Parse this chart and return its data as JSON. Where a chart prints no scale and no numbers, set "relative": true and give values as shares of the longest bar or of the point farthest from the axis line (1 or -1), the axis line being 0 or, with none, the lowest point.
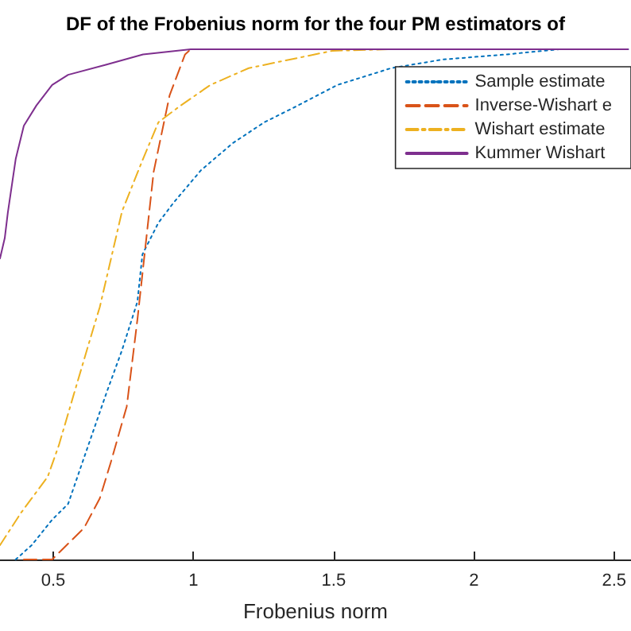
{
  "chart_data": {
    "type": "line",
    "relative": true,
    "title": "DF of the Frobenius norm for the four PM estimators of",
    "xlabel": "Frobenius norm",
    "xlim": [
      0.31,
      2.56
    ],
    "xticks": [
      0.5,
      1,
      1.5,
      2,
      2.5
    ],
    "legend": "top right",
    "grid": false,
    "marker": "none",
    "series": [
      {
        "name": "Sample estimate",
        "color": "#0072bd",
        "line_style": "dotted",
        "x": [
          0.366,
          0.423,
          0.496,
          0.553,
          0.61,
          0.69,
          0.745,
          0.8,
          0.818,
          0.875,
          0.93,
          1.027,
          1.14,
          1.253,
          1.366,
          1.513,
          1.705,
          1.89,
          2.118,
          2.304,
          2.55
        ],
        "values": [
          0,
          0.028,
          0.078,
          0.109,
          0.2,
          0.327,
          0.41,
          0.505,
          0.598,
          0.66,
          0.7,
          0.763,
          0.816,
          0.857,
          0.888,
          0.93,
          0.963,
          0.98,
          0.99,
          1,
          1
        ]
      },
      {
        "name": "Inverse-Wishart e",
        "color": "#d95319",
        "line_style": "dashed",
        "x": [
          0.395,
          0.496,
          0.61,
          0.666,
          0.705,
          0.762,
          0.8,
          0.858,
          0.915,
          0.97,
          0.99,
          2.55
        ],
        "values": [
          0,
          0,
          0.062,
          0.12,
          0.19,
          0.3,
          0.47,
          0.76,
          0.91,
          0.99,
          1,
          1
        ]
      },
      {
        "name": "Wishart estimate",
        "color": "#edb120",
        "line_style": "dashdot",
        "x": [
          0.31,
          0.383,
          0.48,
          0.52,
          0.575,
          0.632,
          0.666,
          0.745,
          0.82,
          0.875,
          0.95,
          1.06,
          1.197,
          1.327,
          1.496,
          1.705,
          2.55
        ],
        "values": [
          0.028,
          0.09,
          0.162,
          0.224,
          0.327,
          0.433,
          0.495,
          0.682,
          0.785,
          0.857,
          0.888,
          0.93,
          0.963,
          0.978,
          0.997,
          1,
          1
        ]
      },
      {
        "name": "Kummer Wishart",
        "color": "#7e2f8e",
        "line_style": "solid",
        "x": [
          0.31,
          0.327,
          0.338,
          0.366,
          0.395,
          0.44,
          0.496,
          0.553,
          0.69,
          0.82,
          0.99,
          2.55
        ],
        "values": [
          0.59,
          0.63,
          0.68,
          0.785,
          0.85,
          0.89,
          0.93,
          0.95,
          0.97,
          0.99,
          1,
          1
        ]
      }
    ]
  }
}
